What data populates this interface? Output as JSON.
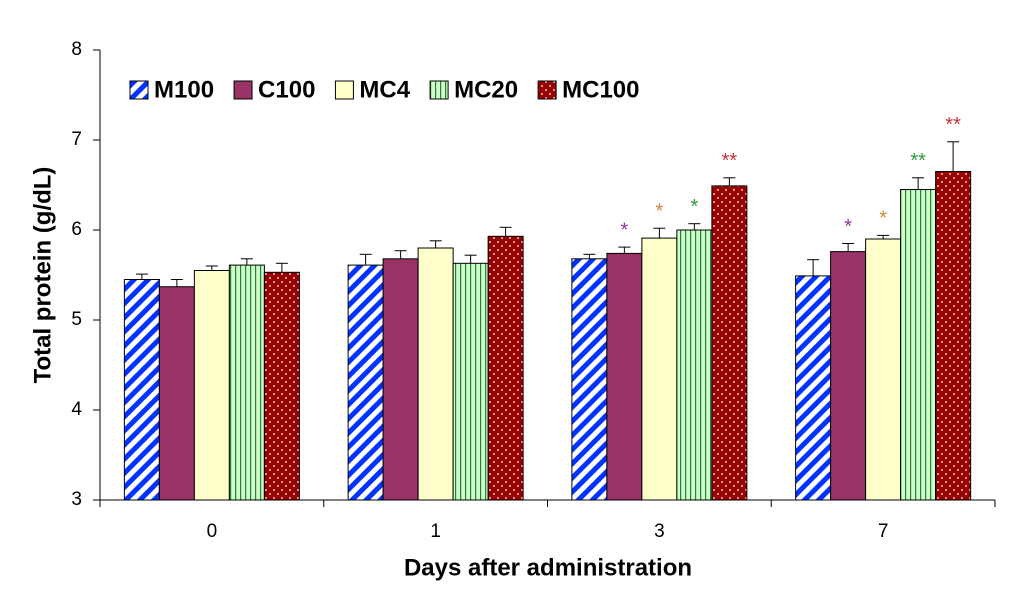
{
  "chart_data": {
    "type": "bar",
    "x_label": "Days after administration",
    "y_label": "Total protein (g/dL)",
    "categories": [
      "0",
      "1",
      "3",
      "7"
    ],
    "ylim": [
      3,
      8
    ],
    "yticks": [
      3,
      4,
      5,
      6,
      7,
      8
    ],
    "legend": "top-left",
    "series": [
      {
        "name": "M100",
        "color": "#0033ff",
        "pattern": "diagonal",
        "values": [
          5.45,
          5.61,
          5.68,
          5.49
        ],
        "errors": [
          0.06,
          0.12,
          0.05,
          0.18
        ],
        "significance": [
          null,
          null,
          null,
          null
        ]
      },
      {
        "name": "C100",
        "color": "#993366",
        "pattern": "solid",
        "values": [
          5.37,
          5.68,
          5.74,
          5.76
        ],
        "errors": [
          0.08,
          0.09,
          0.07,
          0.09
        ],
        "significance": [
          null,
          null,
          "*",
          "*"
        ],
        "significance_color": "#993399"
      },
      {
        "name": "MC4",
        "color": "#ffffcc",
        "pattern": "solid",
        "values": [
          5.55,
          5.8,
          5.91,
          5.9
        ],
        "errors": [
          0.05,
          0.08,
          0.11,
          0.04
        ],
        "significance": [
          null,
          null,
          "*",
          "*"
        ],
        "significance_color": "#cc8833"
      },
      {
        "name": "MC20",
        "color": "#ccffcc",
        "pattern": "vertical",
        "values": [
          5.61,
          5.63,
          6.0,
          6.45
        ],
        "errors": [
          0.07,
          0.09,
          0.07,
          0.13
        ],
        "significance": [
          null,
          null,
          "*",
          "**"
        ],
        "significance_color": "#339933"
      },
      {
        "name": "MC100",
        "color": "#990000",
        "pattern": "dots",
        "values": [
          5.53,
          5.93,
          6.49,
          6.65
        ],
        "errors": [
          0.1,
          0.1,
          0.09,
          0.33
        ],
        "significance": [
          null,
          null,
          "**",
          "**"
        ],
        "significance_color": "#cc3333"
      }
    ]
  }
}
